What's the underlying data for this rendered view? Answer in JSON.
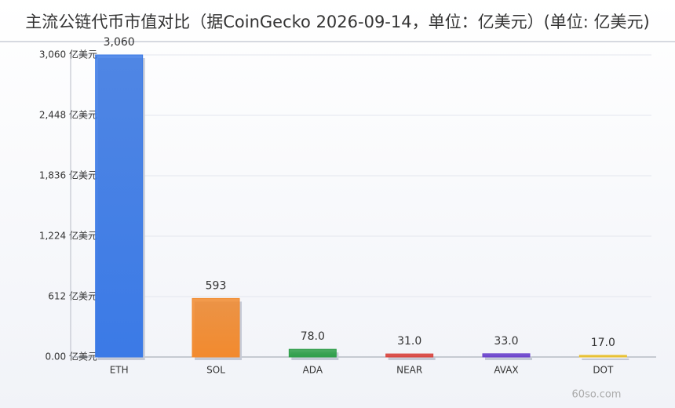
{
  "chart_data": {
    "type": "bar",
    "title": "主流公链代币市值对比（据CoinGecko 2026-09-14，单位：亿美元）(单位: 亿美元)",
    "categories": [
      "ETH",
      "SOL",
      "ADA",
      "NEAR",
      "AVAX",
      "DOT"
    ],
    "values": [
      3060,
      593,
      78,
      31,
      33,
      17
    ],
    "value_labels": [
      "3,060",
      "593",
      "78.0",
      "31.0",
      "33.0",
      "17.0"
    ],
    "colors": [
      "#3b7ae6",
      "#f28a2e",
      "#2f9f4a",
      "#d9453f",
      "#6a42cc",
      "#e8c02e"
    ],
    "ylim": [
      0,
      3060
    ],
    "yticks": [
      {
        "value": 0,
        "label": "0.00 亿美元"
      },
      {
        "value": 612,
        "label": "612 亿美元"
      },
      {
        "value": 1224,
        "label": "1,224 亿美元"
      },
      {
        "value": 1836,
        "label": "1,836 亿美元"
      },
      {
        "value": 2448,
        "label": "2,448 亿美元"
      },
      {
        "value": 3060,
        "label": "3,060 亿美元"
      }
    ],
    "grid": true,
    "watermark": "60so.com"
  }
}
